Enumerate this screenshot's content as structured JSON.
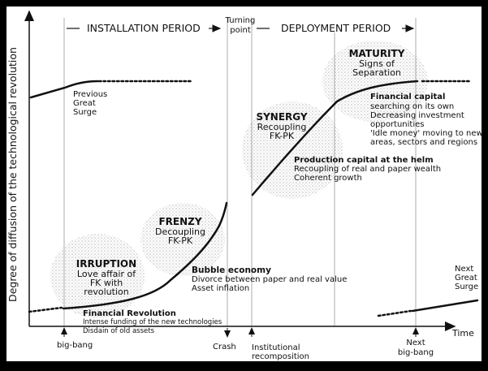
{
  "y_axis_label": "Degree of diffusion of the technological revolution",
  "x_axis_label": "Time",
  "header": {
    "installation": "INSTALLATION PERIOD",
    "turning_point": [
      "Turning",
      "point"
    ],
    "deployment": "DEPLOYMENT PERIOD"
  },
  "previous_surge": [
    "Previous",
    "Great",
    "Surge"
  ],
  "irruption": {
    "title": "IRRUPTION",
    "lines": [
      "Love affair of",
      "FK with",
      "revolution"
    ]
  },
  "frenzy": {
    "title": "FRENZY",
    "lines": [
      "Decoupling",
      "FK-PK"
    ]
  },
  "synergy": {
    "title": "SYNERGY",
    "lines": [
      "Recoupling",
      "FK-PK"
    ]
  },
  "maturity": {
    "title": "MATURITY",
    "lines": [
      "Signs of",
      "Separation"
    ]
  },
  "bubble_economy": {
    "title": "Bubble economy",
    "lines": [
      "Divorce between paper and real value",
      "Asset inflation"
    ]
  },
  "financial_revolution": {
    "title": "Financial Revolution",
    "lines": [
      "Intense funding of the new technologies",
      "Disdain of old assets"
    ]
  },
  "production_capital": {
    "title": "Production capital at the helm",
    "lines": [
      "Recoupling of real and paper wealth",
      "Coherent growth"
    ]
  },
  "financial_capital": {
    "title": "Financial capital",
    "lines": [
      "searching on its own",
      "Decreasing investment",
      "opportunities",
      "'Idle money' moving to new",
      "areas, sectors and regions"
    ]
  },
  "next_surge": [
    "Next",
    "Great",
    "Surge"
  ],
  "markers": {
    "big_bang": "big-bang",
    "crash": "Crash",
    "institutional": [
      "Institutional",
      "recomposition"
    ],
    "next_big_bang": [
      "Next",
      "big-bang"
    ]
  },
  "colors": {
    "frame": "#000000",
    "panel": "#ffffff",
    "ink": "#111111",
    "dotted_cloud": "#b8b8b8"
  }
}
